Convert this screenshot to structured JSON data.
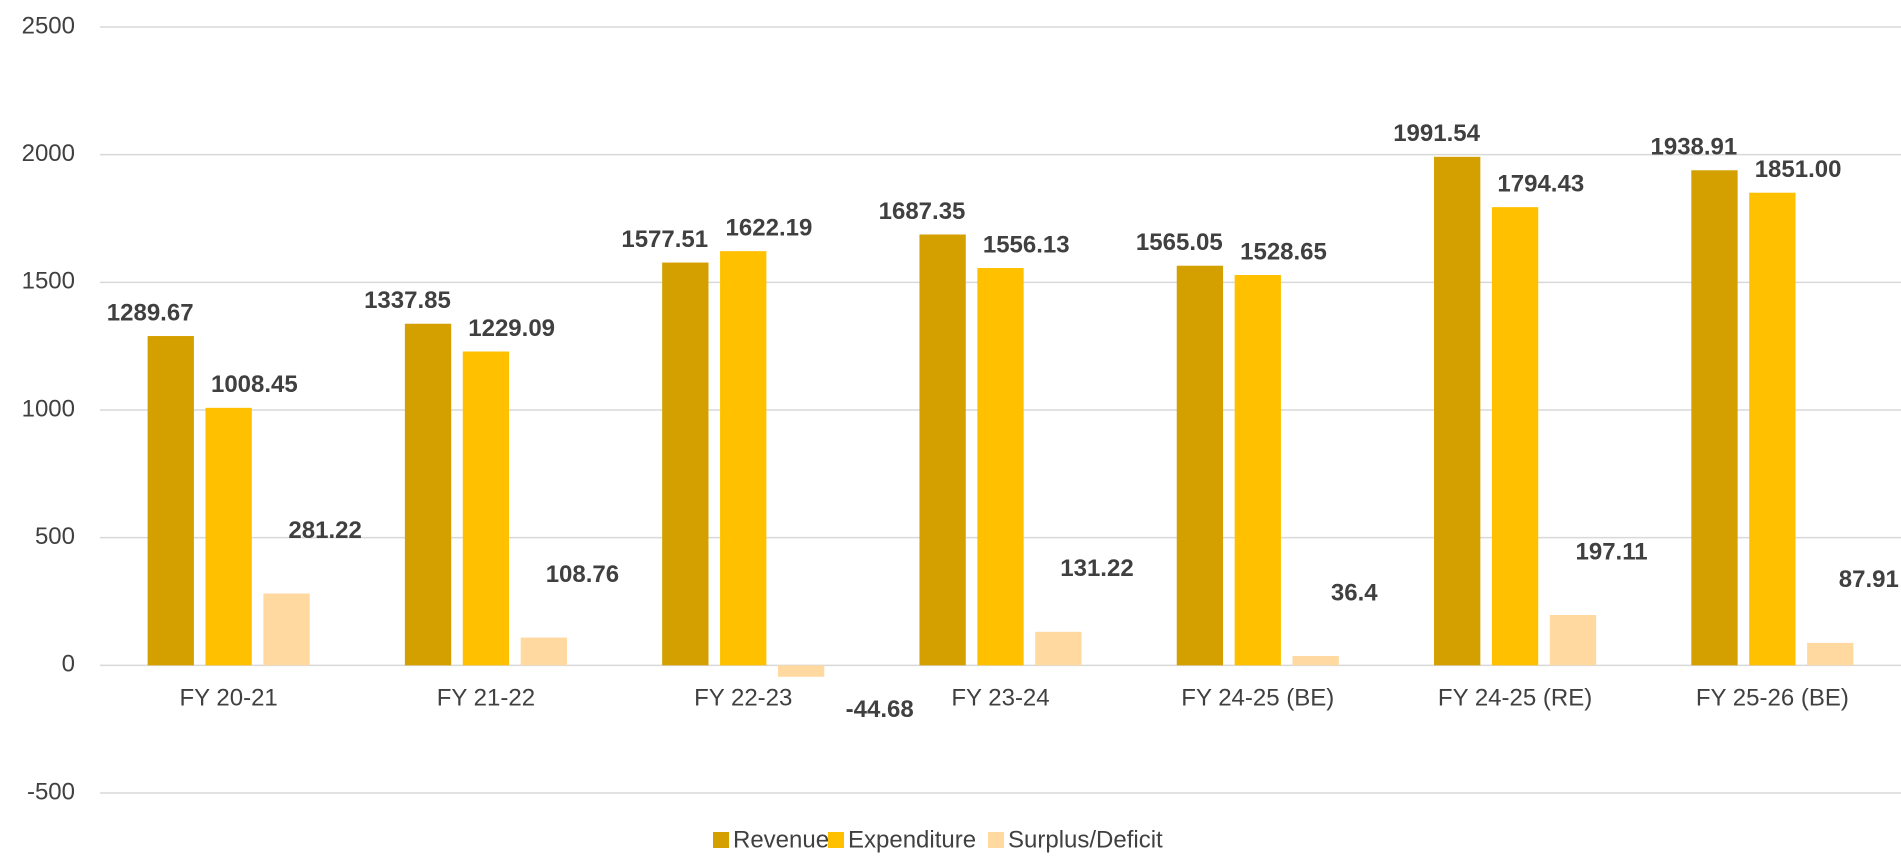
{
  "chart_data": {
    "type": "bar",
    "categories": [
      "FY 20-21",
      "FY 21-22",
      "FY 22-23",
      "FY 23-24",
      "FY 24-25 (BE)",
      "FY 24-25 (RE)",
      "FY 25-26 (BE)"
    ],
    "series": [
      {
        "name": "Revenue",
        "color": "#d4a000",
        "values": [
          1289.67,
          1337.85,
          1577.51,
          1687.35,
          1565.05,
          1991.54,
          1938.91
        ]
      },
      {
        "name": "Expenditure",
        "color": "#ffc000",
        "values": [
          1008.45,
          1229.09,
          1622.19,
          1556.13,
          1528.65,
          1794.43,
          1851
        ],
        "value_labels": [
          "1008.45",
          "1229.09",
          "1622.19",
          "1556.13",
          "1528.65",
          "1794.43",
          "1851.00"
        ]
      },
      {
        "name": "Surplus/Deficit",
        "color": "#ffd9a0",
        "values": [
          281.22,
          108.76,
          -44.68,
          131.22,
          36.4,
          197.11,
          87.91
        ]
      }
    ],
    "ylim": [
      -500,
      2500
    ],
    "yticks": [
      -500,
      0,
      500,
      1000,
      1500,
      2000,
      2500
    ],
    "grid": true,
    "legend": "bottom"
  }
}
